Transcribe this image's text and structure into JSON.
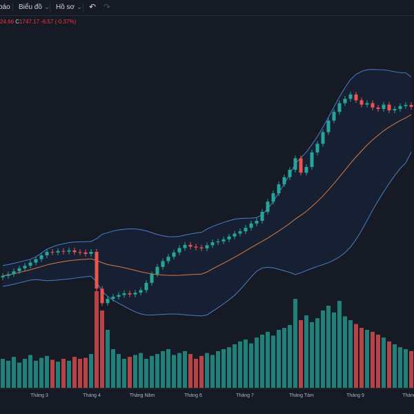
{
  "toolbar": {
    "partial_label": "báo",
    "chart_menu": "Biểu đồ",
    "profile_menu": "Hồ sơ",
    "undo": "↶",
    "redo": "↷",
    "chevron": "⌄"
  },
  "ohlc": {
    "prev": "24.66",
    "c_label": "C",
    "close": "1747.17",
    "change": "-6.57",
    "change_pct": "(-0.37%)"
  },
  "colors": {
    "background": "#161a25",
    "up": "#26a69a",
    "down": "#ef5350",
    "band": "#4a7fc8",
    "basis": "#e0783a"
  },
  "chart_data": {
    "type": "candlestick",
    "indicator": "Bollinger Bands",
    "x_tick_labels": [
      "Tháng 3",
      "Tháng 4",
      "Tháng Năm",
      "Tháng 6",
      "Tháng 7",
      "Tháng Tám",
      "Tháng 9",
      "Tháng 10"
    ],
    "closes": [
      1164,
      1170,
      1180,
      1190,
      1199,
      1210,
      1222,
      1235,
      1247,
      1245,
      1250,
      1248,
      1252,
      1246,
      1245,
      1240,
      1247,
      1120,
      1070,
      1085,
      1092,
      1098,
      1104,
      1100,
      1106,
      1115,
      1140,
      1170,
      1195,
      1215,
      1230,
      1245,
      1260,
      1271,
      1265,
      1262,
      1259,
      1270,
      1280,
      1283,
      1290,
      1300,
      1310,
      1318,
      1330,
      1345,
      1354,
      1385,
      1420,
      1449,
      1480,
      1505,
      1530,
      1570,
      1520,
      1540,
      1590,
      1620,
      1660,
      1700,
      1730,
      1760,
      1775,
      1790,
      1770,
      1755,
      1760,
      1745,
      1740,
      1755,
      1735,
      1740,
      1750,
      1754,
      1747.17
    ],
    "volumes": [
      30,
      28,
      32,
      26,
      30,
      34,
      28,
      31,
      33,
      29,
      27,
      30,
      28,
      32,
      30,
      31,
      35,
      100,
      80,
      60,
      40,
      35,
      30,
      32,
      34,
      36,
      30,
      33,
      35,
      38,
      40,
      34,
      36,
      38,
      35,
      30,
      33,
      36,
      34,
      38,
      40,
      42,
      45,
      48,
      50,
      46,
      52,
      55,
      58,
      54,
      60,
      62,
      65,
      92,
      70,
      75,
      68,
      72,
      80,
      85,
      78,
      90,
      74,
      70,
      66,
      62,
      60,
      58,
      55,
      52,
      48,
      45,
      42,
      40,
      38
    ]
  }
}
